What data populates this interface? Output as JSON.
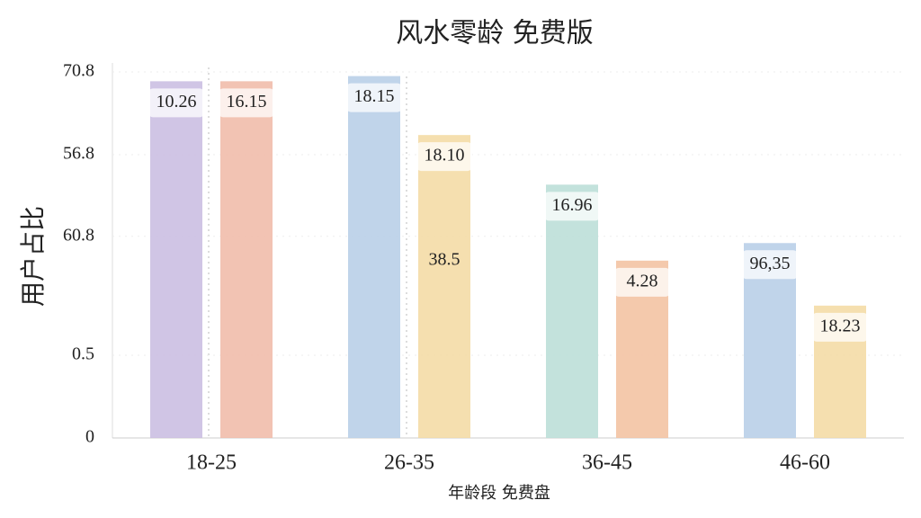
{
  "chart_data": {
    "type": "bar",
    "title": "风水零龄 免费版",
    "y_label": "用户占比",
    "x_label": "年龄段 免费盘",
    "categories": [
      "18-25",
      "26-35",
      "36-45",
      "46-60"
    ],
    "series": [
      {
        "colors": [
          "#cbbfe2",
          "#b9cfe8",
          "#bcdfd8",
          "#b9cfe8"
        ],
        "values": [
          69,
          70,
          49,
          37.7
        ],
        "value_labels": [
          "10.26",
          "18.15",
          "16.96",
          "96,35"
        ]
      },
      {
        "colors": [
          "#f1bcab",
          "#f4dba6",
          "#f3c3a3",
          "#f4dba6"
        ],
        "values": [
          69,
          58.6,
          34.3,
          25.6
        ],
        "value_labels": [
          "16.15",
          "18.10",
          "4.28",
          "18.23"
        ]
      }
    ],
    "annotations": [
      "38.5"
    ],
    "ylim": [
      0,
      70.8
    ],
    "yticks": [
      {
        "value": 0,
        "label": "0"
      },
      {
        "value": 16,
        "label": "0.5"
      },
      {
        "value": 39,
        "label": "60.8"
      },
      {
        "value": 54.8,
        "label": "56.8"
      },
      70.8
    ],
    "grid": true
  }
}
